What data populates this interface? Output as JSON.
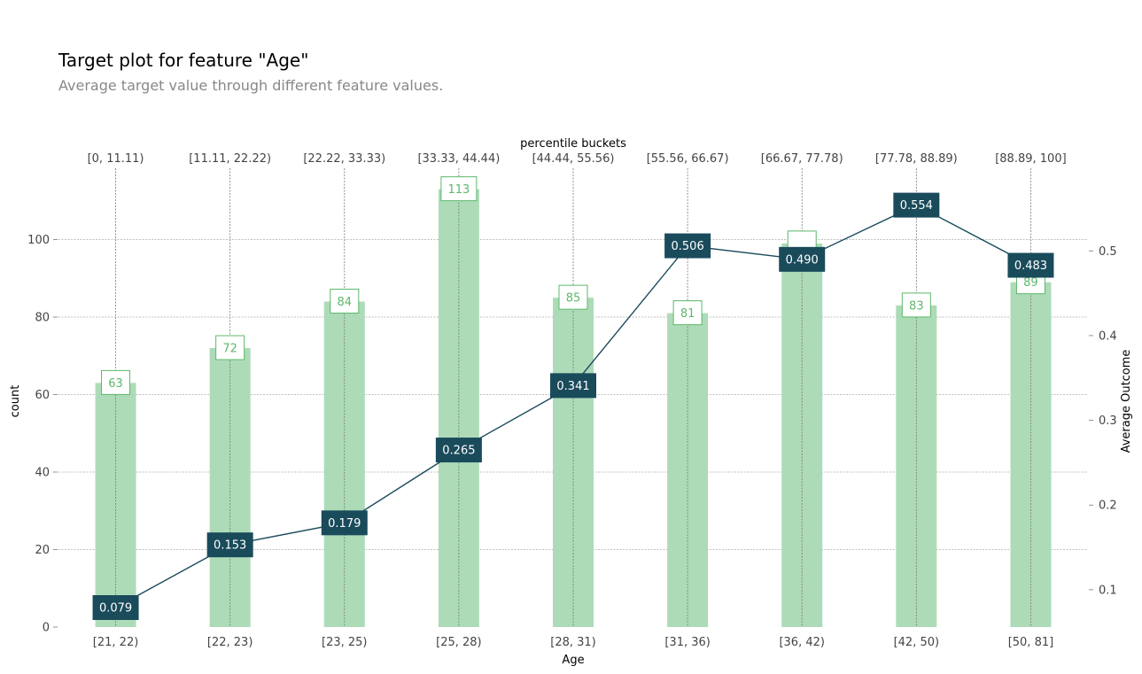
{
  "title": "Target plot for feature \"Age\"",
  "subtitle": "Average target value through different feature values.",
  "colors": {
    "bar": "#addbb8",
    "bar_label_text": "#5cb86a",
    "bar_label_border": "#5cb86a",
    "line": "#1a4b5b",
    "line_label_bg": "#1a4b5b",
    "line_label_text": "#ffffff",
    "grid": "#aaaaaa",
    "axis_text": "#444444"
  },
  "chart_data": {
    "type": "bar",
    "categories": [
      "[21, 22)",
      "[22, 23)",
      "[23, 25)",
      "[25, 28)",
      "[28, 31)",
      "[31, 36)",
      "[36, 42)",
      "[42, 50)",
      "[50, 81]"
    ],
    "top_categories": [
      "[0, 11.11)",
      "[11.11, 22.22)",
      "[22.22, 33.33)",
      "[33.33, 44.44)",
      "[44.44, 55.56)",
      "[55.56, 66.67)",
      "[66.67, 77.78)",
      "[77.78, 88.89)",
      "[88.89, 100]"
    ],
    "top_axis_label": "percentile buckets",
    "xlabel": "Age",
    "ylabel": "count",
    "ylabel_right": "Average Outcome",
    "series": [
      {
        "type": "bar",
        "axis": "left",
        "values": [
          63,
          72,
          84,
          113,
          85,
          81,
          99,
          83,
          89
        ],
        "labels": [
          "63",
          "72",
          "84",
          "113",
          "85",
          "81",
          "",
          "83",
          "89"
        ]
      },
      {
        "type": "line",
        "axis": "right",
        "values": [
          0.079,
          0.153,
          0.179,
          0.265,
          0.341,
          0.506,
          0.49,
          0.554,
          0.483
        ],
        "labels": [
          "0.079",
          "0.153",
          "0.179",
          "0.265",
          "0.341",
          "0.506",
          "0.490",
          "0.554",
          "0.483"
        ]
      }
    ],
    "ylim": [
      0,
      118.4
    ],
    "y_ticks": [
      "0",
      "20",
      "40",
      "60",
      "80",
      "100"
    ],
    "ylim_right": [
      0.056,
      0.5975
    ],
    "y_right_ticks": [
      "0.1",
      "0.2",
      "0.3",
      "0.4",
      "0.5"
    ],
    "grid": true
  }
}
